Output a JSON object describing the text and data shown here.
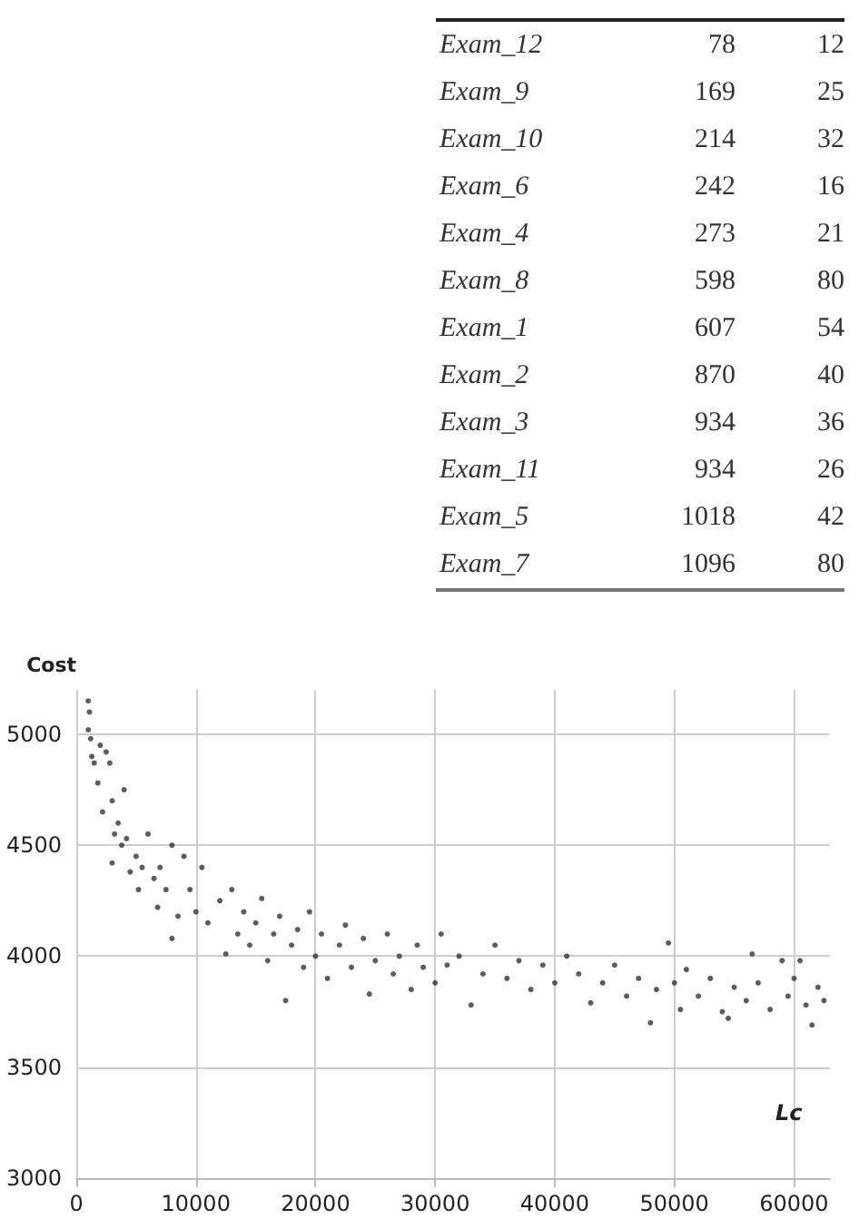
{
  "chart_data": [
    {
      "type": "other",
      "categories": [
        "Exam_12",
        "Exam_9",
        "Exam_10",
        "Exam_6",
        "Exam_4",
        "Exam_8",
        "Exam_1",
        "Exam_2",
        "Exam_3",
        "Exam_11",
        "Exam_5",
        "Exam_7"
      ],
      "series": [
        {
          "values": [
            78,
            169,
            214,
            242,
            273,
            598,
            607,
            870,
            934,
            934,
            1018,
            1096
          ]
        },
        {
          "values": [
            12,
            25,
            32,
            16,
            21,
            80,
            54,
            40,
            36,
            26,
            42,
            80
          ]
        }
      ],
      "data_labels": true
    },
    {
      "type": "scatter",
      "xlabel": "Lc",
      "ylabel": "Cost",
      "x": [
        1000,
        1100,
        1000,
        1200,
        1300,
        1500,
        2000,
        2500,
        1800,
        2200,
        2800,
        3000,
        3200,
        3500,
        4000,
        3800,
        4200,
        3000,
        4500,
        5000,
        5500,
        6000,
        5200,
        6500,
        7000,
        7500,
        8000,
        6800,
        8500,
        9000,
        9500,
        10000,
        8000,
        10500,
        11000,
        12000,
        12500,
        13000,
        13500,
        14000,
        14500,
        15000,
        15500,
        16000,
        16500,
        17000,
        17500,
        18000,
        18500,
        19000,
        19500,
        20000,
        20500,
        21000,
        22000,
        22500,
        23000,
        24000,
        24500,
        25000,
        26000,
        26500,
        27000,
        28000,
        28500,
        29000,
        30000,
        30500,
        31000,
        32000,
        33000,
        34000,
        35000,
        36000,
        37000,
        38000,
        39000,
        40000,
        41000,
        42000,
        43000,
        44000,
        45000,
        46000,
        47000,
        48000,
        48500,
        49500,
        50000,
        50500,
        51000,
        52000,
        53000,
        54000,
        54500,
        55000,
        56000,
        56500,
        57000,
        58000,
        59000,
        59500,
        60000,
        61000,
        61500,
        62000,
        62500,
        60500
      ],
      "values": [
        5150,
        5100,
        5020,
        4980,
        4900,
        4870,
        4950,
        4920,
        4780,
        4650,
        4870,
        4700,
        4550,
        4600,
        4750,
        4500,
        4530,
        4420,
        4380,
        4450,
        4400,
        4550,
        4300,
        4350,
        4400,
        4300,
        4500,
        4220,
        4180,
        4450,
        4300,
        4200,
        4080,
        4400,
        4150,
        4250,
        4010,
        4300,
        4100,
        4200,
        4050,
        4150,
        4260,
        3980,
        4100,
        4180,
        3800,
        4050,
        4120,
        3950,
        4200,
        4000,
        4100,
        3900,
        4050,
        4140,
        3950,
        4080,
        3830,
        3980,
        4100,
        3920,
        4000,
        3850,
        4050,
        3950,
        3880,
        4100,
        3960,
        4000,
        3780,
        3920,
        4050,
        3900,
        3980,
        3850,
        3960,
        3880,
        4000,
        3920,
        3790,
        3880,
        3960,
        3820,
        3900,
        3700,
        3850,
        4060,
        3880,
        3760,
        3940,
        3820,
        3900,
        3750,
        3720,
        3860,
        3800,
        4010,
        3880,
        3760,
        3980,
        3820,
        3900,
        3780,
        3690,
        3860,
        3800,
        3980
      ],
      "color": "#333333",
      "marker": "circle",
      "xlim": [
        0,
        63000
      ],
      "xticks": [
        0,
        10000,
        20000,
        30000,
        40000,
        50000,
        60000
      ],
      "ylim": [
        3000,
        5200
      ],
      "yticks": [
        3000,
        3500,
        4000,
        4500,
        5000
      ],
      "grid": true
    }
  ]
}
